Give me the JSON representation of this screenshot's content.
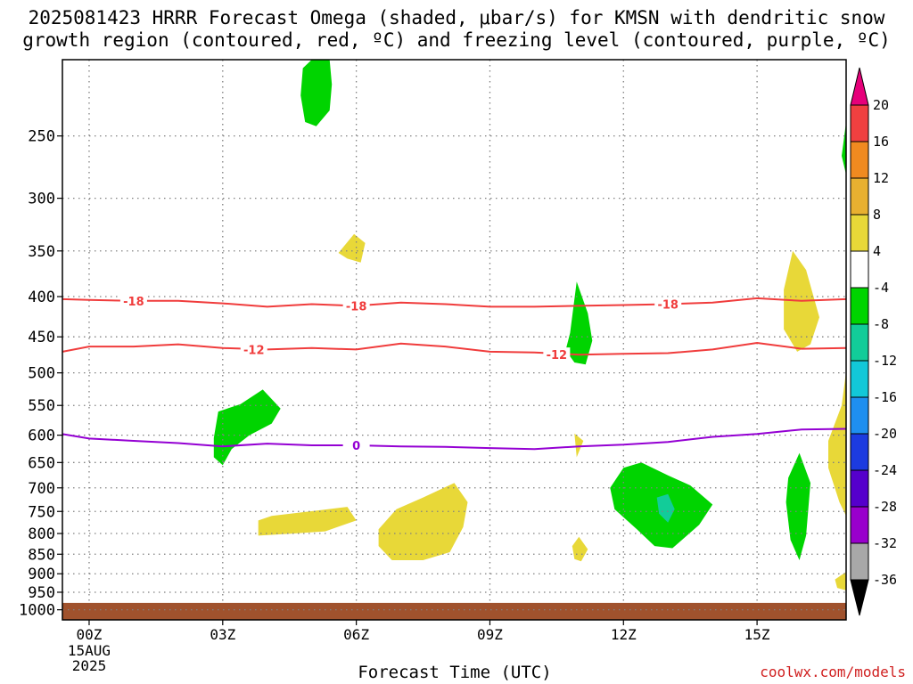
{
  "title_line1": "2025081423 HRRR Forecast Omega (shaded, μbar/s) for KMSN with dendritic snow",
  "title_line2": "growth region (contoured, red, ºC) and freezing level (contoured, purple, ºC)",
  "footer_url": "coolwx.com/models",
  "chart_data": {
    "type": "time-height contour",
    "xlabel": "Forecast Time (UTC)",
    "x_ticks": [
      {
        "hour": 0,
        "label": "00Z",
        "sub": [
          "15AUG",
          "2025"
        ]
      },
      {
        "hour": 3,
        "label": "03Z",
        "sub": []
      },
      {
        "hour": 6,
        "label": "06Z",
        "sub": []
      },
      {
        "hour": 9,
        "label": "09Z",
        "sub": []
      },
      {
        "hour": 12,
        "label": "12Z",
        "sub": []
      },
      {
        "hour": 15,
        "label": "15Z",
        "sub": []
      }
    ],
    "xlim_hours": [
      -0.6,
      17.0
    ],
    "y_ticks": [
      250,
      300,
      350,
      400,
      450,
      500,
      550,
      600,
      650,
      700,
      750,
      800,
      850,
      900,
      950,
      1000
    ],
    "y_unit": "hPa",
    "ylim_hpa": [
      200,
      1030
    ],
    "y_scale": "log-pressure",
    "ground_hpa": 980,
    "colors": {
      "ground": "#a0522d",
      "dgz": "#f03c3c",
      "freezing": "#9400d3",
      "grid": "#808080"
    },
    "colorbar": {
      "levels": [
        -36,
        -32,
        -28,
        -24,
        -20,
        -16,
        -12,
        -8,
        -4,
        4,
        8,
        12,
        16,
        20
      ],
      "fills": [
        "#a8a8a8",
        "#9900cc",
        "#5500cc",
        "#1c3be0",
        "#1e8ff0",
        "#12c8d8",
        "#12cc99",
        "#00d400",
        "#ffffff",
        "#e8d838",
        "#e8b030",
        "#f08a20",
        "#f04040"
      ],
      "low_extend": "#000000",
      "high_extend": "#e6007a"
    },
    "contours": [
      {
        "name": "-18",
        "color": "#f03c3c",
        "points": [
          [
            -0.6,
            403
          ],
          [
            0,
            404
          ],
          [
            1,
            405
          ],
          [
            2,
            405
          ],
          [
            3,
            408
          ],
          [
            4,
            412
          ],
          [
            5,
            409
          ],
          [
            6,
            411
          ],
          [
            7,
            407
          ],
          [
            8,
            409
          ],
          [
            9,
            412
          ],
          [
            10,
            412
          ],
          [
            11,
            411
          ],
          [
            12,
            410
          ],
          [
            13,
            409
          ],
          [
            14,
            407
          ],
          [
            15,
            402
          ],
          [
            16,
            405
          ],
          [
            17,
            403
          ]
        ],
        "labels": [
          [
            1.0,
            405
          ],
          [
            6.0,
            411
          ],
          [
            13.0,
            409
          ]
        ]
      },
      {
        "name": "-12",
        "color": "#f03c3c",
        "points": [
          [
            -0.6,
            470
          ],
          [
            0,
            463
          ],
          [
            1,
            463
          ],
          [
            2,
            460
          ],
          [
            3,
            465
          ],
          [
            4,
            467
          ],
          [
            5,
            465
          ],
          [
            6,
            467
          ],
          [
            7,
            459
          ],
          [
            8,
            463
          ],
          [
            9,
            470
          ],
          [
            10,
            471
          ],
          [
            11,
            474
          ],
          [
            12,
            473
          ],
          [
            13,
            472
          ],
          [
            14,
            467
          ],
          [
            15,
            458
          ],
          [
            16,
            466
          ],
          [
            17,
            465
          ]
        ],
        "labels": [
          [
            3.7,
            467
          ],
          [
            10.5,
            474
          ]
        ]
      },
      {
        "name": "0",
        "color": "#9400d3",
        "points": [
          [
            -0.6,
            598
          ],
          [
            0,
            606
          ],
          [
            1,
            610
          ],
          [
            2,
            614
          ],
          [
            3,
            620
          ],
          [
            4,
            615
          ],
          [
            5,
            618
          ],
          [
            6,
            618
          ],
          [
            7,
            620
          ],
          [
            8,
            621
          ],
          [
            9,
            623
          ],
          [
            10,
            625
          ],
          [
            11,
            620
          ],
          [
            12,
            617
          ],
          [
            13,
            612
          ],
          [
            14,
            603
          ],
          [
            15,
            598
          ],
          [
            16,
            590
          ],
          [
            17,
            589
          ]
        ],
        "labels": [
          [
            6.0,
            618
          ]
        ]
      }
    ],
    "omega_regions": [
      {
        "value": -6,
        "points": [
          [
            4.8,
            205
          ],
          [
            5.0,
            200
          ],
          [
            5.4,
            200
          ],
          [
            5.45,
            215
          ],
          [
            5.4,
            232
          ],
          [
            5.1,
            243
          ],
          [
            4.85,
            240
          ],
          [
            4.75,
            222
          ]
        ]
      },
      {
        "value": 6,
        "points": [
          [
            5.6,
            352
          ],
          [
            5.95,
            333
          ],
          [
            6.2,
            342
          ],
          [
            6.1,
            362
          ],
          [
            5.8,
            358
          ]
        ]
      },
      {
        "value": -6,
        "points": [
          [
            10.8,
            445
          ],
          [
            10.95,
            383
          ],
          [
            11.2,
            420
          ],
          [
            11.3,
            455
          ],
          [
            11.15,
            488
          ],
          [
            10.9,
            485
          ],
          [
            10.7,
            468
          ]
        ]
      },
      {
        "value": 6,
        "points": [
          [
            15.6,
            392
          ],
          [
            15.8,
            350
          ],
          [
            16.1,
            370
          ],
          [
            16.4,
            425
          ],
          [
            16.2,
            460
          ],
          [
            15.9,
            470
          ],
          [
            15.6,
            440
          ]
        ]
      },
      {
        "value": -6,
        "points": [
          [
            17.0,
            240
          ],
          [
            16.9,
            265
          ],
          [
            17.0,
            280
          ]
        ]
      },
      {
        "value": 6,
        "points": [
          [
            16.6,
            610
          ],
          [
            16.9,
            550
          ],
          [
            17.0,
            498
          ],
          [
            17.0,
            760
          ],
          [
            16.85,
            730
          ],
          [
            16.6,
            660
          ]
        ]
      },
      {
        "value": 6,
        "points": [
          [
            16.75,
            915
          ],
          [
            17.0,
            895
          ],
          [
            17.0,
            945
          ],
          [
            16.8,
            938
          ]
        ]
      },
      {
        "value": -6,
        "points": [
          [
            2.8,
            605
          ],
          [
            2.9,
            560
          ],
          [
            3.4,
            548
          ],
          [
            3.9,
            525
          ],
          [
            4.3,
            555
          ],
          [
            4.1,
            580
          ],
          [
            3.6,
            600
          ],
          [
            3.2,
            625
          ],
          [
            3.0,
            655
          ],
          [
            2.8,
            640
          ]
        ]
      },
      {
        "value": 6,
        "points": [
          [
            3.8,
            770
          ],
          [
            4.1,
            760
          ],
          [
            5.2,
            747
          ],
          [
            5.8,
            740
          ],
          [
            6.0,
            770
          ],
          [
            5.3,
            795
          ],
          [
            4.6,
            800
          ],
          [
            3.8,
            805
          ]
        ]
      },
      {
        "value": 6,
        "points": [
          [
            6.5,
            790
          ],
          [
            6.9,
            745
          ],
          [
            7.5,
            720
          ],
          [
            8.2,
            690
          ],
          [
            8.5,
            730
          ],
          [
            8.4,
            785
          ],
          [
            8.1,
            845
          ],
          [
            7.5,
            865
          ],
          [
            6.8,
            865
          ],
          [
            6.5,
            830
          ]
        ]
      },
      {
        "value": 6,
        "points": [
          [
            10.9,
            597
          ],
          [
            11.1,
            610
          ],
          [
            10.95,
            640
          ]
        ]
      },
      {
        "value": 6,
        "points": [
          [
            10.85,
            830
          ],
          [
            11.0,
            808
          ],
          [
            11.2,
            838
          ],
          [
            11.05,
            868
          ],
          [
            10.9,
            862
          ]
        ]
      },
      {
        "value": -6,
        "points": [
          [
            11.7,
            700
          ],
          [
            12.0,
            660
          ],
          [
            12.4,
            650
          ],
          [
            13.0,
            675
          ],
          [
            13.5,
            695
          ],
          [
            14.0,
            735
          ],
          [
            13.7,
            780
          ],
          [
            13.1,
            835
          ],
          [
            12.7,
            830
          ],
          [
            12.3,
            790
          ],
          [
            11.8,
            745
          ]
        ]
      },
      {
        "value": -10,
        "points": [
          [
            12.75,
            720
          ],
          [
            13.0,
            713
          ],
          [
            13.15,
            745
          ],
          [
            13.0,
            775
          ],
          [
            12.8,
            755
          ]
        ]
      },
      {
        "value": -6,
        "points": [
          [
            15.7,
            680
          ],
          [
            15.95,
            632
          ],
          [
            16.2,
            690
          ],
          [
            16.1,
            805
          ],
          [
            15.95,
            865
          ],
          [
            15.75,
            815
          ],
          [
            15.65,
            730
          ]
        ]
      }
    ]
  }
}
